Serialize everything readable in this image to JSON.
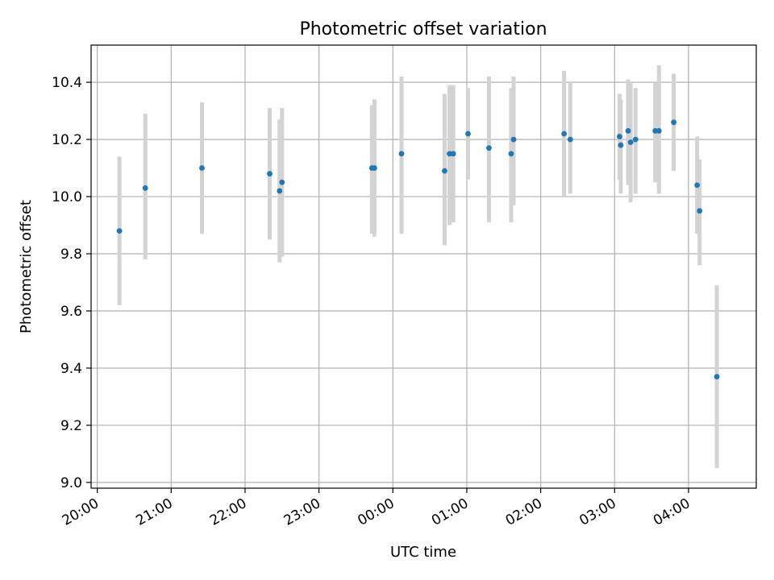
{
  "chart_data": {
    "type": "scatter",
    "title": "Photometric offset variation",
    "xlabel": "UTC time",
    "ylabel": "Photometric offset",
    "x_axis_kind": "time",
    "xlim": [
      "19:55",
      "04:55"
    ],
    "ylim": [
      8.98,
      10.53
    ],
    "x_ticks": [
      "20:00",
      "21:00",
      "22:00",
      "23:00",
      "00:00",
      "01:00",
      "02:00",
      "03:00",
      "04:00"
    ],
    "y_ticks": [
      9.0,
      9.2,
      9.4,
      9.6,
      9.8,
      10.0,
      10.2,
      10.4
    ],
    "y_tick_labels": [
      "9.0",
      "9.2",
      "9.4",
      "9.6",
      "9.8",
      "10.0",
      "10.2",
      "10.4"
    ],
    "grid": true,
    "colors": {
      "points": "#1f77b4",
      "error_bars": "#d3d3d3",
      "grid": "#b0b0b0"
    },
    "series": [
      {
        "points": [
          {
            "x": "20:18",
            "y": 9.88,
            "low": 9.62,
            "high": 10.14
          },
          {
            "x": "20:39",
            "y": 10.03,
            "low": 9.78,
            "high": 10.29
          },
          {
            "x": "21:25",
            "y": 10.1,
            "low": 9.87,
            "high": 10.33
          },
          {
            "x": "22:20",
            "y": 10.08,
            "low": 9.85,
            "high": 10.31
          },
          {
            "x": "22:28",
            "y": 10.02,
            "low": 9.77,
            "high": 10.27
          },
          {
            "x": "22:30",
            "y": 10.05,
            "low": 9.79,
            "high": 10.31
          },
          {
            "x": "23:43",
            "y": 10.1,
            "low": 9.87,
            "high": 10.32
          },
          {
            "x": "23:45",
            "y": 10.1,
            "low": 9.86,
            "high": 10.34
          },
          {
            "x": "00:07",
            "y": 10.15,
            "low": 9.87,
            "high": 10.42
          },
          {
            "x": "00:42",
            "y": 10.09,
            "low": 9.83,
            "high": 10.36
          },
          {
            "x": "00:46",
            "y": 10.15,
            "low": 9.9,
            "high": 10.39
          },
          {
            "x": "00:49",
            "y": 10.15,
            "low": 9.91,
            "high": 10.39
          },
          {
            "x": "01:01",
            "y": 10.22,
            "low": 10.06,
            "high": 10.38
          },
          {
            "x": "01:18",
            "y": 10.17,
            "low": 9.91,
            "high": 10.42
          },
          {
            "x": "01:36",
            "y": 10.15,
            "low": 9.91,
            "high": 10.38
          },
          {
            "x": "01:38",
            "y": 10.2,
            "low": 9.97,
            "high": 10.42
          },
          {
            "x": "02:19",
            "y": 10.22,
            "low": 10.0,
            "high": 10.44
          },
          {
            "x": "02:24",
            "y": 10.2,
            "low": 10.01,
            "high": 10.4
          },
          {
            "x": "03:04",
            "y": 10.21,
            "low": 10.06,
            "high": 10.36
          },
          {
            "x": "03:05",
            "y": 10.18,
            "low": 10.01,
            "high": 10.34
          },
          {
            "x": "03:11",
            "y": 10.23,
            "low": 10.04,
            "high": 10.41
          },
          {
            "x": "03:13",
            "y": 10.19,
            "low": 9.98,
            "high": 10.4
          },
          {
            "x": "03:17",
            "y": 10.2,
            "low": 10.01,
            "high": 10.38
          },
          {
            "x": "03:33",
            "y": 10.23,
            "low": 10.05,
            "high": 10.4
          },
          {
            "x": "03:36",
            "y": 10.23,
            "low": 10.01,
            "high": 10.46
          },
          {
            "x": "03:48",
            "y": 10.26,
            "low": 10.09,
            "high": 10.43
          },
          {
            "x": "04:07",
            "y": 10.04,
            "low": 9.87,
            "high": 10.21
          },
          {
            "x": "04:09",
            "y": 9.95,
            "low": 9.76,
            "high": 10.13
          },
          {
            "x": "04:23",
            "y": 9.37,
            "low": 9.05,
            "high": 9.69
          }
        ]
      }
    ]
  }
}
